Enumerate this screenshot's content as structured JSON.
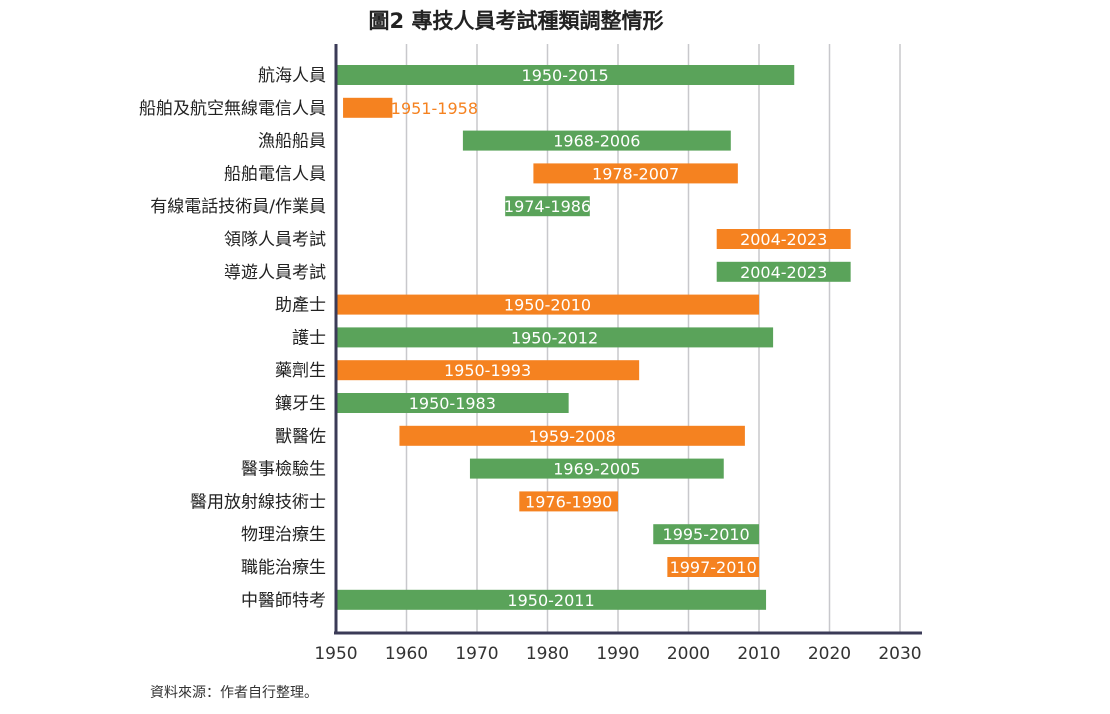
{
  "chart_data": {
    "type": "bar",
    "orientation": "horizontal-range",
    "title": "圖2  專技人員考試種類調整情形",
    "source": "資料來源：作者自行整理。",
    "xlim": [
      1950,
      2030
    ],
    "x_ticks": [
      1950,
      1960,
      1970,
      1980,
      1990,
      2000,
      2010,
      2020,
      2030
    ],
    "grid": "vertical",
    "colors": {
      "green": "#5aa35a",
      "orange": "#f58220",
      "axis": "#3b3b57",
      "grid": "#c8c8cc"
    },
    "categories": [
      "航海人員",
      "船舶及航空無線電信人員",
      "漁船船員",
      "船舶電信人員",
      "有線電話技術員/作業員",
      "領隊人員考試",
      "導遊人員考試",
      "助產士",
      "護士",
      "藥劑生",
      "鑲牙生",
      "獸醫佐",
      "醫事檢驗生",
      "醫用放射線技術士",
      "物理治療生",
      "職能治療生",
      "中醫師特考"
    ],
    "bars": [
      {
        "start": 1950,
        "end": 2015,
        "label": "1950-2015",
        "color": "green"
      },
      {
        "start": 1951,
        "end": 1958,
        "label": "1951-1958",
        "color": "orange"
      },
      {
        "start": 1968,
        "end": 2006,
        "label": "1968-2006",
        "color": "green"
      },
      {
        "start": 1978,
        "end": 2007,
        "label": "1978-2007",
        "color": "orange"
      },
      {
        "start": 1974,
        "end": 1986,
        "label": "1974-1986",
        "color": "green"
      },
      {
        "start": 2004,
        "end": 2023,
        "label": "2004-2023",
        "color": "orange"
      },
      {
        "start": 2004,
        "end": 2023,
        "label": "2004-2023",
        "color": "green"
      },
      {
        "start": 1950,
        "end": 2010,
        "label": "1950-2010",
        "color": "orange"
      },
      {
        "start": 1950,
        "end": 2012,
        "label": "1950-2012",
        "color": "green"
      },
      {
        "start": 1950,
        "end": 1993,
        "label": "1950-1993",
        "color": "orange"
      },
      {
        "start": 1950,
        "end": 1983,
        "label": "1950-1983",
        "color": "green"
      },
      {
        "start": 1959,
        "end": 2008,
        "label": "1959-2008",
        "color": "orange"
      },
      {
        "start": 1969,
        "end": 2005,
        "label": "1969-2005",
        "color": "green"
      },
      {
        "start": 1976,
        "end": 1990,
        "label": "1976-1990",
        "color": "orange"
      },
      {
        "start": 1995,
        "end": 2010,
        "label": "1995-2010",
        "color": "green"
      },
      {
        "start": 1997,
        "end": 2010,
        "label": "1997-2010",
        "color": "orange"
      },
      {
        "start": 1950,
        "end": 2011,
        "label": "1950-2011",
        "color": "green"
      }
    ]
  }
}
